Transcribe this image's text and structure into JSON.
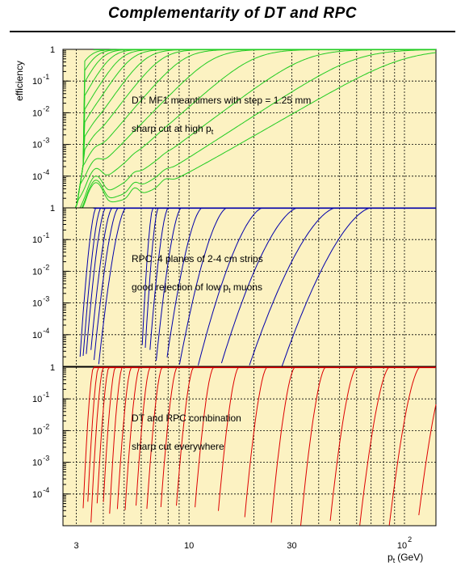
{
  "title": "Complementarity of DT and RPC",
  "y_axis_label": "efficiency",
  "x_axis": {
    "label_main": "p",
    "label_sub": "t",
    "label_unit": "(GeV)",
    "tick_labels": [
      {
        "value": 3,
        "text": "3"
      },
      {
        "value": 10,
        "text": "10"
      },
      {
        "value": 30,
        "text": "30"
      },
      {
        "value": 100,
        "text": "10",
        "exp": "2"
      }
    ]
  },
  "y_tick_labels": [
    {
      "text": "1",
      "exp": ""
    },
    {
      "text": "10",
      "exp": "-1"
    },
    {
      "text": "10",
      "exp": "-2"
    },
    {
      "text": "10",
      "exp": "-3"
    },
    {
      "text": "10",
      "exp": "-4"
    }
  ],
  "colors": {
    "plot_bg": "#fcf2c2",
    "dt": "#22cc22",
    "rpc": "#0000aa",
    "combo": "#dd0000"
  },
  "chart_data": [
    {
      "type": "line",
      "name": "DT",
      "xscale": "log",
      "xlim": [
        2.6,
        140
      ],
      "yscale": "log",
      "ylim": [
        1e-05,
        1
      ],
      "grid": true,
      "annotations": [
        {
          "text": "DT:  MF1 meantimers with step = 1.25 mm"
        },
        {
          "text": "sharp cut at high p",
          "sub": "t"
        }
      ],
      "curves_note": "Threshold turn-on efficiency curves with low-pt punch-through bumps and plateaus",
      "thresholds": [
        3.35,
        3.6,
        3.9,
        4.3,
        4.8,
        5.4,
        6.3,
        7.5,
        9.5,
        13,
        20,
        35,
        60,
        100
      ],
      "floors": [
        0.0003,
        0.00022,
        0.00016,
        0.00011,
        9e-05,
        7e-05,
        5e-05,
        4e-05,
        3e-05,
        2e-05,
        1.5e-05,
        1e-05,
        1e-05,
        1e-05
      ],
      "peaks": [
        0.004,
        0.003,
        0.0022,
        0.0016,
        0.0012,
        0.0009,
        0.0006,
        0.0004,
        0.0003,
        0.00018,
        0.00012,
        8e-05,
        6e-05,
        5e-05
      ]
    },
    {
      "type": "line",
      "name": "RPC",
      "xscale": "log",
      "xlim": [
        2.6,
        140
      ],
      "yscale": "log",
      "ylim": [
        1e-05,
        1
      ],
      "grid": true,
      "annotations": [
        {
          "text": "RPC:  4 planes of 2-4 cm strips"
        },
        {
          "text": "good rejection of low p",
          "sub": "t",
          "after": " muons"
        }
      ],
      "start_points": [
        3.1,
        3.2,
        3.3,
        3.45,
        3.6,
        3.8,
        6.0,
        6.2,
        6.5,
        7.0,
        7.8,
        9.0,
        11.0,
        14.0,
        19.0,
        27.0
      ],
      "full_points": [
        3.7,
        3.9,
        4.1,
        4.4,
        4.7,
        5.1,
        6.8,
        7.2,
        8.0,
        9.2,
        11.5,
        15.0,
        22.0,
        32.0,
        48.0,
        70.0
      ]
    },
    {
      "type": "line",
      "name": "DT and RPC combination",
      "xscale": "log",
      "xlim": [
        2.6,
        140
      ],
      "yscale": "log",
      "ylim": [
        1e-05,
        1
      ],
      "grid": true,
      "annotations": [
        {
          "text": "DT and RPC combination"
        },
        {
          "text": "sharp cut everywhere"
        }
      ],
      "start_points": [
        3.2,
        3.35,
        3.5,
        3.7,
        3.95,
        4.25,
        4.6,
        5.0,
        5.6,
        6.3,
        7.3,
        8.6,
        10.5,
        13.5,
        18.0,
        24.0,
        33.0,
        45.0,
        62.0,
        85.0,
        115.0
      ],
      "full_points": [
        3.6,
        3.8,
        4.0,
        4.25,
        4.55,
        4.9,
        5.4,
        5.9,
        6.6,
        7.5,
        8.8,
        10.5,
        13.0,
        17.0,
        23.0,
        31.0,
        43.0,
        60.0,
        85.0,
        118.0,
        160.0
      ]
    }
  ]
}
